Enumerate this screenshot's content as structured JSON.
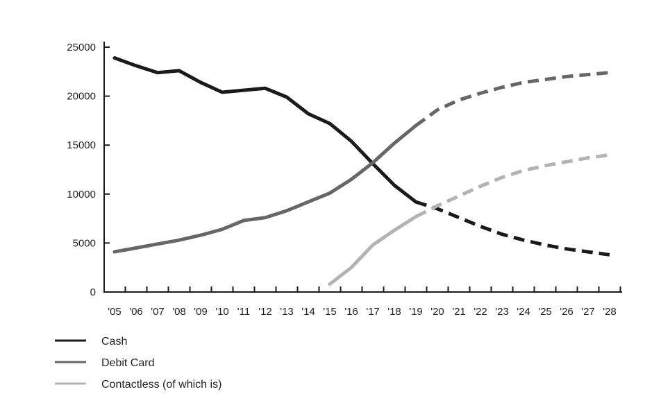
{
  "chart_data": {
    "type": "line",
    "x": [
      "'05",
      "'06",
      "'07",
      "'08",
      "'09",
      "'10",
      "'11",
      "'12",
      "'13",
      "'14",
      "'15",
      "'16",
      "'17",
      "'18",
      "'19",
      "'20",
      "'21",
      "'22",
      "'23",
      "'24",
      "'25",
      "'26",
      "'27",
      "'28"
    ],
    "ylim": [
      0,
      25000
    ],
    "yticks": [
      0,
      5000,
      10000,
      15000,
      20000,
      25000
    ],
    "grid": false,
    "legend_position": "bottom-left",
    "forecast_from": "'19",
    "series": [
      {
        "name": "Cash",
        "color": "#1a1a1a",
        "values": [
          23900,
          23100,
          22400,
          22600,
          21400,
          20400,
          20600,
          20800,
          19900,
          18200,
          17200,
          15400,
          13100,
          10900,
          9200,
          8500,
          7600,
          6700,
          5900,
          5300,
          4800,
          4400,
          4100,
          3800
        ]
      },
      {
        "name": "Debit Card",
        "color": "#666666",
        "values": [
          4100,
          4500,
          4900,
          5300,
          5800,
          6400,
          7300,
          7600,
          8300,
          9200,
          10100,
          11500,
          13200,
          15200,
          17000,
          18600,
          19600,
          20300,
          20900,
          21400,
          21700,
          22000,
          22200,
          22400
        ]
      },
      {
        "name": "Contactless (of which is)",
        "color": "#b3b3b3",
        "values": [
          null,
          null,
          null,
          null,
          null,
          null,
          null,
          null,
          null,
          null,
          800,
          2500,
          4800,
          6300,
          7700,
          8800,
          9800,
          10800,
          11700,
          12400,
          12900,
          13300,
          13700,
          14000
        ]
      }
    ]
  }
}
